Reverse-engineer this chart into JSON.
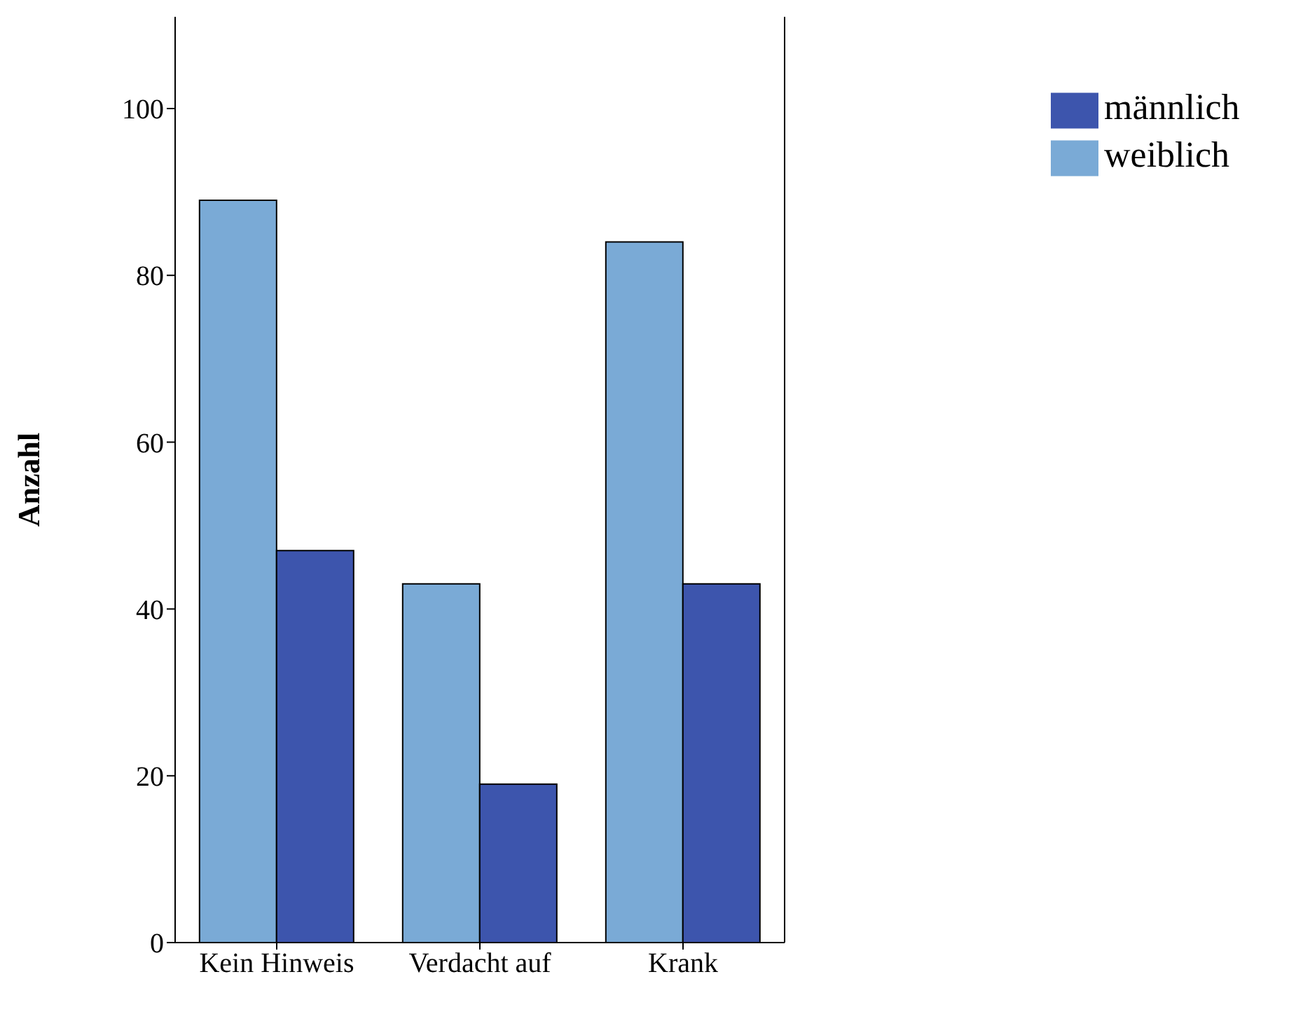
{
  "chart_data": {
    "type": "bar",
    "ylabel": "Anzahl",
    "categories": [
      "Kein Hinweis",
      "Verdacht auf",
      "Krank"
    ],
    "series": [
      {
        "name": "weiblich",
        "color": "#7aaad6",
        "values": [
          89,
          43,
          84
        ]
      },
      {
        "name": "männlich",
        "color": "#3d55ad",
        "values": [
          47,
          19,
          43
        ]
      }
    ],
    "ylim": [
      0,
      111
    ],
    "yticks": [
      0,
      20,
      40,
      60,
      80,
      100
    ],
    "legend": "top right"
  }
}
